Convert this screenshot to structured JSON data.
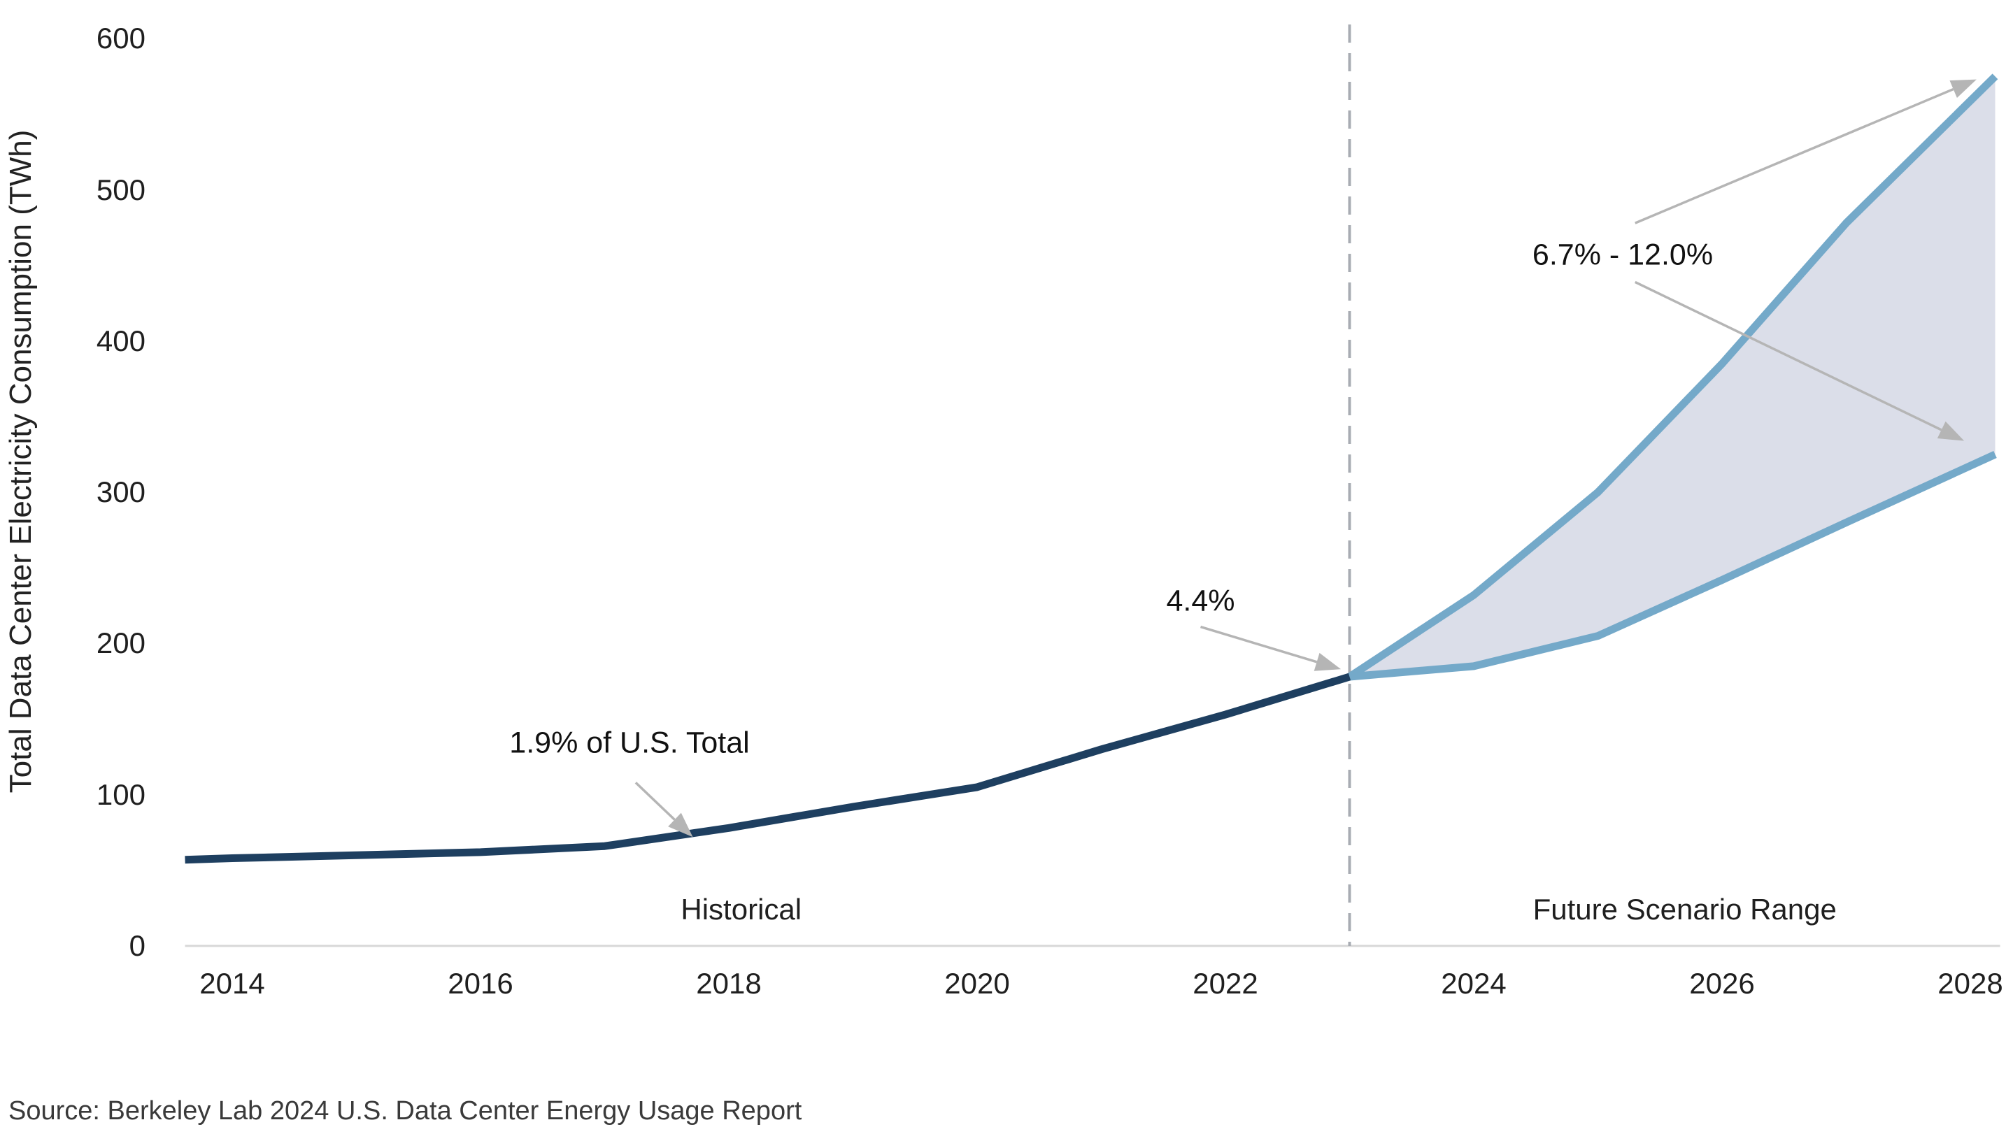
{
  "source": "Source: Berkeley Lab 2024 U.S. Data Center Energy Usage Report",
  "colors": {
    "historical_line": "#1e3f60",
    "scenario_line": "#74a9c9",
    "scenario_band_fill": "#dbdee9",
    "divider_dashed": "#a8acb3",
    "arrow_gray": "#b5b5b5",
    "axis_line": "#d8d8d8",
    "tick_text": "#1f1f1f",
    "source_text": "#3a3a3a"
  },
  "chart_data": {
    "type": "line",
    "title": "",
    "xlabel": "",
    "ylabel": "Total Data Center Electricity Consumption (TWh)",
    "ylim": [
      0,
      600
    ],
    "x_domain": [
      2013.62,
      2028.24
    ],
    "grid": false,
    "legend": "none",
    "y_ticks": [
      0,
      100,
      200,
      300,
      400,
      500,
      600
    ],
    "x_ticks": [
      2014,
      2016,
      2018,
      2020,
      2022,
      2024,
      2026,
      2028
    ],
    "divider_year": 2023,
    "series": [
      {
        "name": "Historical",
        "color": "#1e3f60",
        "x": [
          2013.62,
          2014,
          2015,
          2016,
          2017,
          2018,
          2019,
          2020,
          2021,
          2022,
          2023
        ],
        "values": [
          57,
          58,
          60,
          62,
          66,
          78,
          92,
          105,
          130,
          153,
          178
        ]
      },
      {
        "name": "Future scenario upper bound",
        "color": "#74a9c9",
        "x": [
          2023,
          2024,
          2025,
          2026,
          2027,
          2028.2
        ],
        "values": [
          178,
          232,
          300,
          385,
          478,
          575
        ]
      },
      {
        "name": "Future scenario lower bound",
        "color": "#74a9c9",
        "x": [
          2023,
          2024,
          2025,
          2026,
          2027,
          2028.2
        ],
        "values": [
          178,
          185,
          205,
          242,
          280,
          325
        ]
      }
    ],
    "band": {
      "between": [
        "Future scenario upper bound",
        "Future scenario lower bound"
      ],
      "fill": "#dbdee9"
    },
    "region_labels": [
      {
        "text": "Historical",
        "year": 2018.1,
        "twh": 24
      },
      {
        "text": "Future Scenario Range",
        "year": 2025.7,
        "twh": 24
      }
    ],
    "annotations": [
      {
        "text": "1.9% of U.S. Total",
        "text_at": {
          "year": 2017.2,
          "twh": 134
        },
        "arrows": [
          {
            "from": {
              "year": 2017.25,
              "twh": 108
            },
            "to": {
              "year": 2017.71,
              "twh": 72
            }
          }
        ]
      },
      {
        "text": "4.4%",
        "text_at": {
          "year": 2021.8,
          "twh": 228
        },
        "arrows": [
          {
            "from": {
              "year": 2021.8,
              "twh": 211
            },
            "to": {
              "year": 2022.93,
              "twh": 183
            }
          }
        ]
      },
      {
        "text": "6.7% - 12.0%",
        "text_at": {
          "year": 2025.2,
          "twh": 457
        },
        "arrows": [
          {
            "from": {
              "year": 2025.3,
              "twh": 478
            },
            "to": {
              "year": 2028.05,
              "twh": 573
            }
          },
          {
            "from": {
              "year": 2025.3,
              "twh": 439
            },
            "to": {
              "year": 2027.95,
              "twh": 334
            }
          }
        ]
      }
    ]
  }
}
